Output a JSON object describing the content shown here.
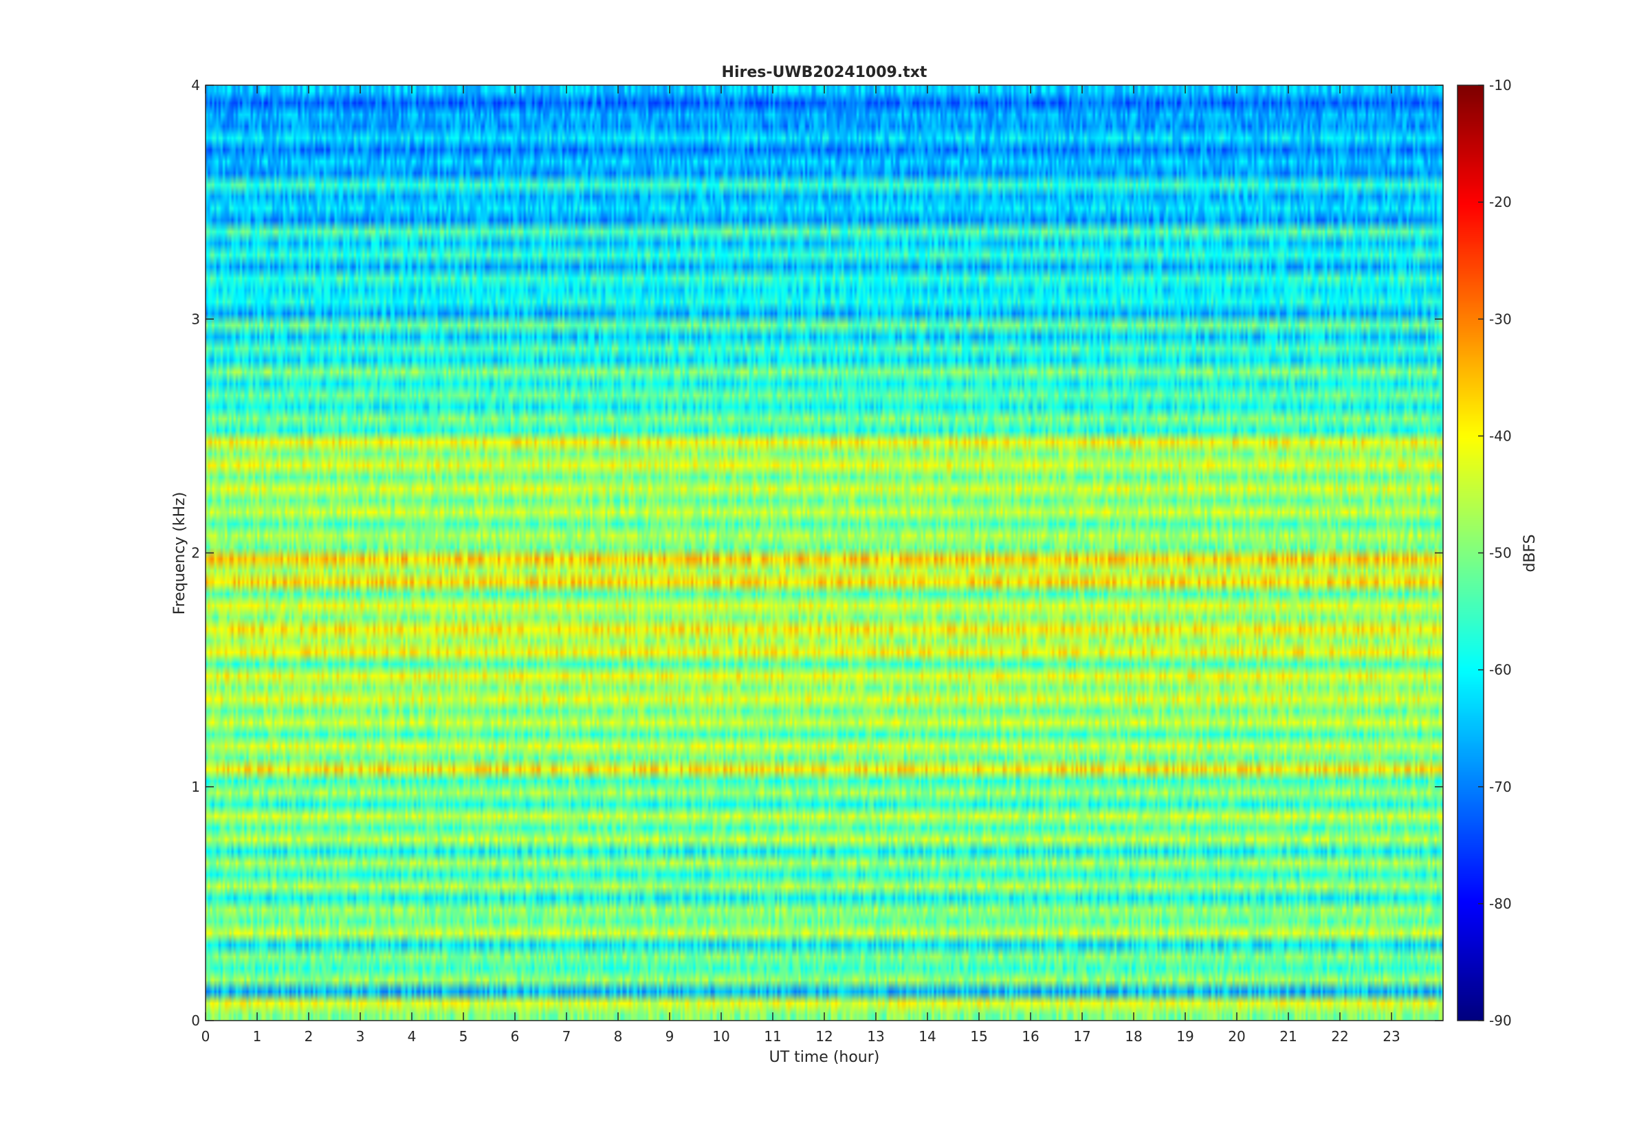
{
  "chart_data": {
    "type": "heatmap",
    "title": "Hires-UWB20241009.txt",
    "xlabel": "UT time (hour)",
    "ylabel": "Frequency (kHz)",
    "xlim": [
      0,
      24
    ],
    "ylim": [
      0,
      4
    ],
    "x_ticks": [
      0,
      1,
      2,
      3,
      4,
      5,
      6,
      7,
      8,
      9,
      10,
      11,
      12,
      13,
      14,
      15,
      16,
      17,
      18,
      19,
      20,
      21,
      22,
      23
    ],
    "y_ticks": [
      0,
      1,
      2,
      3,
      4
    ],
    "colormap": "jet",
    "colorbar": {
      "label": "dBFS",
      "range": [
        -90,
        -10
      ],
      "ticks": [
        -10,
        -20,
        -30,
        -40,
        -50,
        -60,
        -70,
        -80,
        -90
      ]
    },
    "frequency_bands_khz": [
      0.0,
      0.05,
      0.1,
      0.15,
      0.2,
      0.25,
      0.3,
      0.35,
      0.4,
      0.45,
      0.5,
      0.55,
      0.6,
      0.65,
      0.7,
      0.75,
      0.8,
      0.85,
      0.9,
      0.95,
      1.0,
      1.05,
      1.1,
      1.15,
      1.2,
      1.25,
      1.3,
      1.35,
      1.4,
      1.45,
      1.5,
      1.55,
      1.6,
      1.65,
      1.7,
      1.75,
      1.8,
      1.85,
      1.9,
      1.95,
      2.0,
      2.05,
      2.1,
      2.15,
      2.2,
      2.25,
      2.3,
      2.35,
      2.4,
      2.45,
      2.5,
      2.55,
      2.6,
      2.65,
      2.7,
      2.75,
      2.8,
      2.85,
      2.9,
      2.95,
      3.0,
      3.05,
      3.1,
      3.15,
      3.2,
      3.25,
      3.3,
      3.35,
      3.4,
      3.45,
      3.5,
      3.55,
      3.6,
      3.65,
      3.7,
      3.75,
      3.8,
      3.85,
      3.9,
      3.95
    ],
    "band_mean_dbfs": [
      -50,
      -42,
      -66,
      -48,
      -56,
      -50,
      -62,
      -44,
      -53,
      -48,
      -60,
      -46,
      -58,
      -47,
      -60,
      -45,
      -55,
      -44,
      -58,
      -47,
      -56,
      -38,
      -52,
      -43,
      -55,
      -44,
      -52,
      -42,
      -50,
      -41,
      -55,
      -40,
      -48,
      -39,
      -50,
      -42,
      -54,
      -37,
      -47,
      -36,
      -52,
      -46,
      -54,
      -44,
      -52,
      -43,
      -52,
      -42,
      -50,
      -40,
      -58,
      -50,
      -60,
      -52,
      -60,
      -50,
      -62,
      -54,
      -64,
      -52,
      -66,
      -58,
      -62,
      -56,
      -66,
      -56,
      -64,
      -54,
      -68,
      -62,
      -66,
      -56,
      -68,
      -64,
      -70,
      -62,
      -68,
      -66,
      -72,
      -64
    ]
  }
}
